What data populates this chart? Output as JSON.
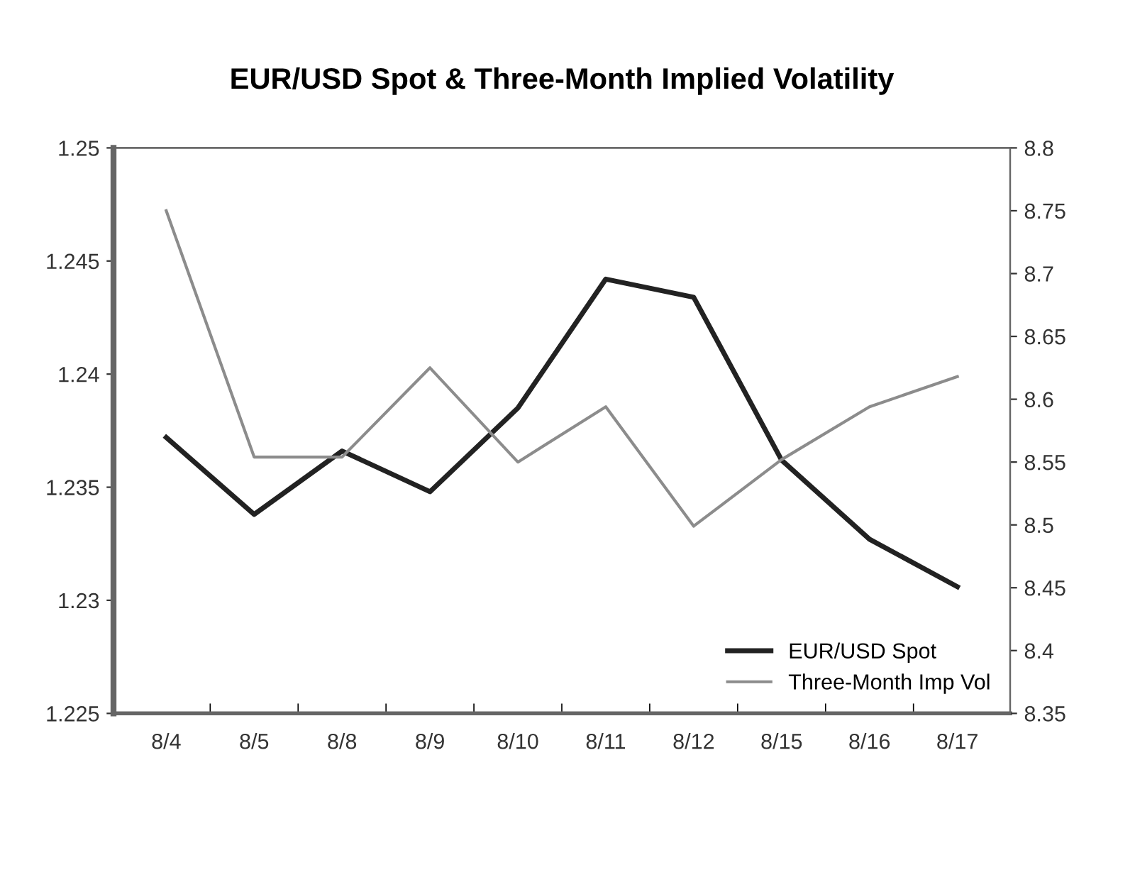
{
  "chart_data": {
    "type": "line",
    "title": "EUR/USD Spot & Three-Month Implied Volatility",
    "categories": [
      "8/4",
      "8/5",
      "8/8",
      "8/9",
      "8/10",
      "8/11",
      "8/12",
      "8/15",
      "8/16",
      "8/17"
    ],
    "series": [
      {
        "name": "EUR/USD Spot",
        "color": "#222222",
        "values": [
          1.2372,
          1.2338,
          1.2366,
          1.2348,
          1.2385,
          1.2442,
          1.2434,
          1.2362,
          1.2327,
          1.2306
        ]
      },
      {
        "name": "Three-Month Imp Vol",
        "color": "#8c8c8c",
        "axis": "y2",
        "values": [
          8.75,
          8.554,
          8.554,
          8.625,
          8.55,
          8.594,
          8.499,
          8.552,
          8.594,
          8.618
        ]
      }
    ],
    "ylim": [
      1.225,
      1.25
    ],
    "yticks": [
      1.225,
      1.23,
      1.235,
      1.24,
      1.245,
      1.25
    ],
    "y2lim": [
      8.35,
      8.8
    ],
    "y2ticks": [
      8.35,
      8.4,
      8.45,
      8.5,
      8.55,
      8.6,
      8.65,
      8.7,
      8.75,
      8.8
    ],
    "grid": false,
    "legend": "bottom right",
    "marker": "none",
    "line_style": "solid"
  }
}
